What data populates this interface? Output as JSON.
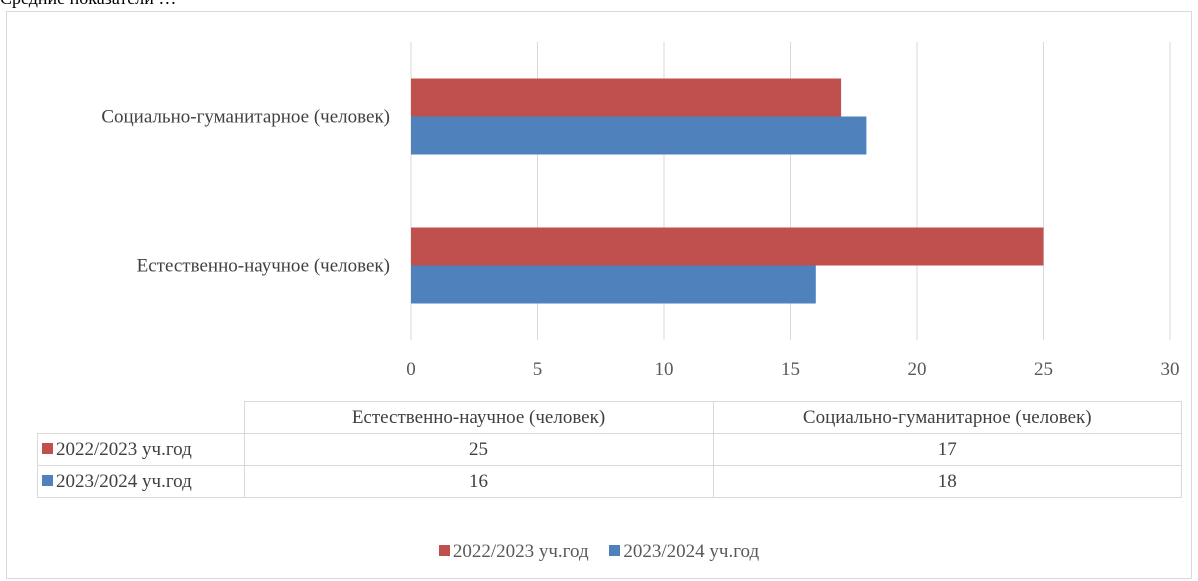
{
  "top_text": "Средние показатели …",
  "colors": {
    "series1": "#c0504d",
    "series2": "#4f81bd"
  },
  "chart_data": {
    "type": "bar",
    "orientation": "horizontal",
    "categories": [
      "Естественно-научное (человек)",
      "Социально-гуманитарное (человек)"
    ],
    "series": [
      {
        "name": "2022/2023 уч.год",
        "values": [
          25,
          17
        ]
      },
      {
        "name": "2023/2024 уч.год",
        "values": [
          16,
          18
        ]
      }
    ],
    "xlim": [
      0,
      30
    ],
    "ticks": [
      "0",
      "5",
      "10",
      "15",
      "20",
      "25",
      "30"
    ],
    "grid": true,
    "legend": "bottom",
    "data_table": true
  },
  "table": {
    "headers": [
      "Естественно-научное (человек)",
      "Социально-гуманитарное (человек)"
    ],
    "rows": [
      {
        "label": "2022/2023 уч.год",
        "cells": [
          "25",
          "17"
        ]
      },
      {
        "label": "2023/2024 уч.год",
        "cells": [
          "16",
          "18"
        ]
      }
    ]
  },
  "legend": [
    "2022/2023 уч.год",
    "2023/2024 уч.год"
  ]
}
